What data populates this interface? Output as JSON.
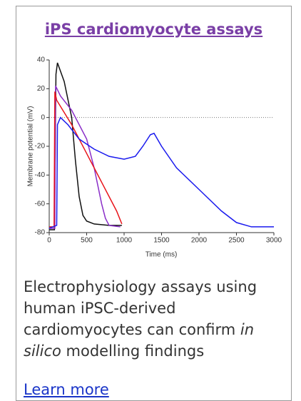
{
  "header": {
    "title": "iPS cardiomyocyte assays"
  },
  "chart_data": {
    "type": "line",
    "xlabel": "Time (ms)",
    "ylabel": "Membrane potential (mV)",
    "xlim": [
      0,
      3000
    ],
    "xticks": [
      0,
      500,
      1000,
      1500,
      2000,
      2500,
      3000
    ],
    "ylim": [
      -80,
      40
    ],
    "yticks": [
      -80,
      -60,
      -40,
      -20,
      0,
      20,
      40
    ],
    "zero_line": true,
    "series": [
      {
        "color": "#111111",
        "x": [
          0,
          70,
          90,
          110,
          200,
          300,
          350,
          400,
          450,
          500,
          600,
          800,
          970
        ],
        "values": [
          -78,
          -78,
          30,
          38,
          25,
          0,
          -30,
          -55,
          -68,
          -72,
          -74,
          -75,
          -75
        ]
      },
      {
        "color": "#8a2ec8",
        "x": [
          0,
          75,
          85,
          150,
          300,
          500,
          600,
          700,
          750,
          800,
          950
        ],
        "values": [
          -77,
          -77,
          22,
          15,
          5,
          -15,
          -35,
          -60,
          -70,
          -75,
          -76
        ]
      },
      {
        "color": "#e8141a",
        "x": [
          0,
          65,
          75,
          100,
          300,
          500,
          700,
          900,
          970
        ],
        "values": [
          -76,
          -76,
          18,
          12,
          -5,
          -25,
          -45,
          -65,
          -74
        ]
      },
      {
        "color": "#1a1aee",
        "x": [
          0,
          100,
          110,
          150,
          250,
          400,
          600,
          800,
          1000,
          1150,
          1250,
          1350,
          1400,
          1500,
          1700,
          2000,
          2300,
          2500,
          2700,
          3000
        ],
        "values": [
          -77,
          -75,
          -5,
          0,
          -5,
          -15,
          -22,
          -27,
          -29,
          -27,
          -20,
          -12,
          -11,
          -20,
          -35,
          -50,
          -65,
          -73,
          -76,
          -76
        ]
      }
    ]
  },
  "body": {
    "text_before": "Electrophysiology assays using human iPSC-derived cardiomyocytes can confirm ",
    "text_italic": "in silico",
    "text_after": " modelling findings"
  },
  "link": "Learn more"
}
